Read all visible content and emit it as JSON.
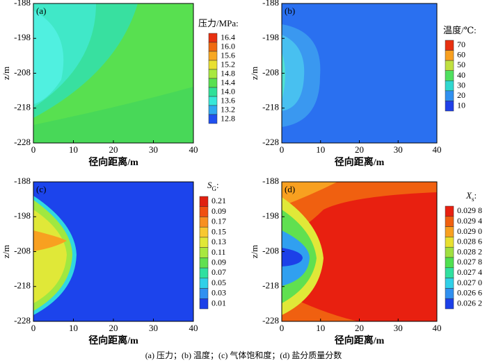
{
  "caption": "(a) 压力；(b) 温度；(c) 气体饱和度；(d) 盐分质量分数",
  "chart_data": [
    {
      "type": "contour",
      "panel": "(a)",
      "xlabel": "径向距离/m",
      "ylabel": "z/m",
      "xlim": [
        0,
        40
      ],
      "ylim": [
        -228,
        -188
      ],
      "xticks": [
        0,
        10,
        20,
        30,
        40
      ],
      "yticks": [
        -188,
        -198,
        -208,
        -218,
        -228
      ],
      "colorbar_title": "压力/MPa:",
      "levels": [
        16.4,
        {
          "value": 16,
          "label": "16.0"
        },
        15.6,
        15.2,
        14.8,
        14.4,
        {
          "value": 14,
          "label": "14.0"
        },
        13.6,
        13.2,
        12.8
      ],
      "colors": [
        "#e83010",
        "#f06a10",
        "#f8a822",
        "#e8e030",
        "#a8e840",
        "#58e050",
        "#30e098",
        "#38e8d8",
        "#30a8f0",
        "#2050f0"
      ]
    },
    {
      "type": "contour",
      "panel": "(b)",
      "xlabel": "径向距离/m",
      "ylabel": "z/m",
      "xlim": [
        0,
        40
      ],
      "ylim": [
        -228,
        -188
      ],
      "xticks": [
        0,
        10,
        20,
        30,
        40
      ],
      "yticks": [
        -188,
        -198,
        -208,
        -218,
        -228
      ],
      "colorbar_title": "温度/℃:",
      "levels": [
        70,
        60,
        50,
        40,
        30,
        20,
        10
      ],
      "colors": [
        "#e83010",
        "#f8a020",
        "#c0e040",
        "#50e060",
        "#30d8d0",
        "#3090f0",
        "#2040e8"
      ]
    },
    {
      "type": "contour",
      "panel": "(c)",
      "xlabel": "径向距离/m",
      "ylabel": "z/m",
      "xlim": [
        0,
        40
      ],
      "ylim": [
        -228,
        -188
      ],
      "xticks": [
        0,
        10,
        20,
        30,
        40
      ],
      "yticks": [
        -188,
        -198,
        -208,
        -218,
        -228
      ],
      "colorbar_title": "S",
      "colorbar_title_sub": "G",
      "colorbar_title_end": ":",
      "levels": [
        0.21,
        0.09,
        0.17,
        0.15,
        0.13,
        0.11,
        0.09,
        0.07,
        0.05,
        0.03,
        0.01
      ],
      "colors": [
        "#e02010",
        "#f05010",
        "#f89020",
        "#f8c830",
        "#e0e838",
        "#a8e840",
        "#60e050",
        "#30e0a0",
        "#30d0e8",
        "#3090f0",
        "#1c40e8"
      ]
    },
    {
      "type": "contour",
      "panel": "(d)",
      "xlabel": "径向距离/m",
      "ylabel": "z/m",
      "xlim": [
        0,
        40
      ],
      "ylim": [
        -228,
        -188
      ],
      "xticks": [
        0,
        10,
        20,
        30,
        40
      ],
      "yticks": [
        -188,
        -198,
        -208,
        -218,
        -228
      ],
      "colorbar_title": "X",
      "colorbar_title_sub": "s",
      "colorbar_title_end": ":",
      "levels": [
        {
          "value": 0.0298,
          "label": "0.029 8"
        },
        {
          "value": 0.0294,
          "label": "0.029 4"
        },
        {
          "value": 0.029,
          "label": "0.029 0"
        },
        {
          "value": 0.0286,
          "label": "0.028 6"
        },
        {
          "value": 0.0282,
          "label": "0.028 2"
        },
        {
          "value": 0.0278,
          "label": "0.027 8"
        },
        {
          "value": 0.0274,
          "label": "0.027 4"
        },
        {
          "value": 0.027,
          "label": "0.027 0"
        },
        {
          "value": 0.0266,
          "label": "0.026 6"
        },
        {
          "value": 0.0262,
          "label": "0.026 2"
        }
      ],
      "colors": [
        "#e82010",
        "#f06010",
        "#f8a020",
        "#e8e030",
        "#a0e040",
        "#50e050",
        "#30e0a0",
        "#30d0e8",
        "#3090f0",
        "#1c40e8"
      ]
    }
  ]
}
